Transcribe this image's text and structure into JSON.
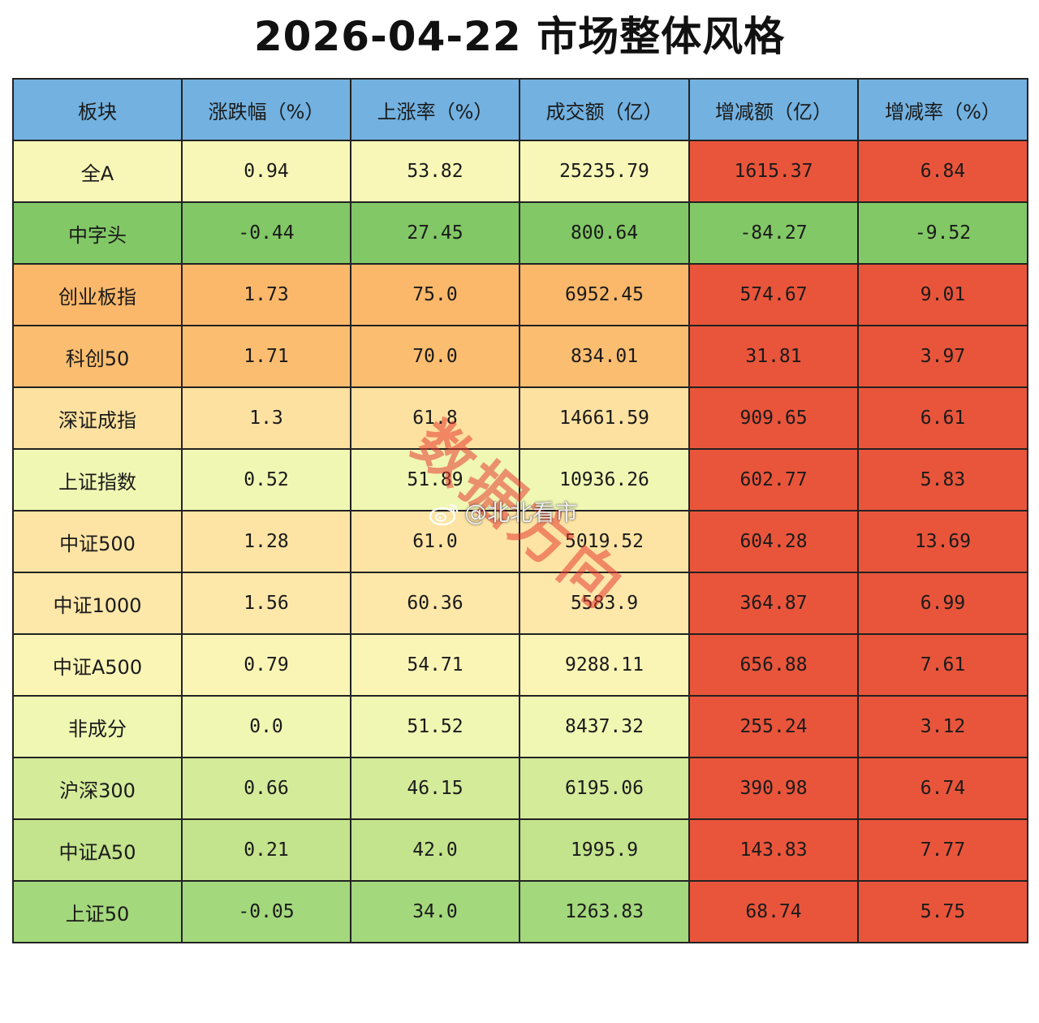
{
  "title": "2026-04-22  市场整体风格",
  "colors": {
    "header": "#72b1e0",
    "negative_red": "#e9553b"
  },
  "watermark": {
    "text": "数据方向",
    "handle": "@北北看市",
    "icon": "weibo-icon"
  },
  "chart_data": {
    "type": "table",
    "columns": [
      "板块",
      "涨跌幅（%）",
      "上涨率（%）",
      "成交额（亿）",
      "增减额（亿）",
      "增减率（%）"
    ],
    "rows": [
      {
        "cells": [
          "全A",
          "0.94",
          "53.82",
          "25235.79",
          "1615.37",
          "6.84"
        ],
        "color": "#f8f7b7"
      },
      {
        "cells": [
          "中字头",
          "-0.44",
          "27.45",
          "800.64",
          "-84.27",
          "-9.52"
        ],
        "color": "#82c866"
      },
      {
        "cells": [
          "创业板指",
          "1.73",
          "75.0",
          "6952.45",
          "574.67",
          "9.01"
        ],
        "color": "#fbb86b"
      },
      {
        "cells": [
          "科创50",
          "1.71",
          "70.0",
          "834.01",
          "31.81",
          "3.97"
        ],
        "color": "#fbbd70"
      },
      {
        "cells": [
          "深证成指",
          "1.3",
          "61.8",
          "14661.59",
          "909.65",
          "6.61"
        ],
        "color": "#fde1a0"
      },
      {
        "cells": [
          "上证指数",
          "0.52",
          "51.89",
          "10936.26",
          "602.77",
          "5.83"
        ],
        "color": "#f0f7b3"
      },
      {
        "cells": [
          "中证500",
          "1.28",
          "61.0",
          "5019.52",
          "604.28",
          "13.69"
        ],
        "color": "#fde4a4"
      },
      {
        "cells": [
          "中证1000",
          "1.56",
          "60.36",
          "5583.9",
          "364.87",
          "6.99"
        ],
        "color": "#fde7a9"
      },
      {
        "cells": [
          "中证A500",
          "0.79",
          "54.71",
          "9288.11",
          "656.88",
          "7.61"
        ],
        "color": "#fbf5b5"
      },
      {
        "cells": [
          "非成分",
          "0.0",
          "51.52",
          "8437.32",
          "255.24",
          "3.12"
        ],
        "color": "#eff7b2"
      },
      {
        "cells": [
          "沪深300",
          "0.66",
          "46.15",
          "6195.06",
          "390.98",
          "6.74"
        ],
        "color": "#d4eb9a"
      },
      {
        "cells": [
          "中证A50",
          "0.21",
          "42.0",
          "1995.9",
          "143.83",
          "7.77"
        ],
        "color": "#c3e38c"
      },
      {
        "cells": [
          "上证50",
          "-0.05",
          "34.0",
          "1263.83",
          "68.74",
          "5.75"
        ],
        "color": "#a4d87c"
      }
    ]
  }
}
